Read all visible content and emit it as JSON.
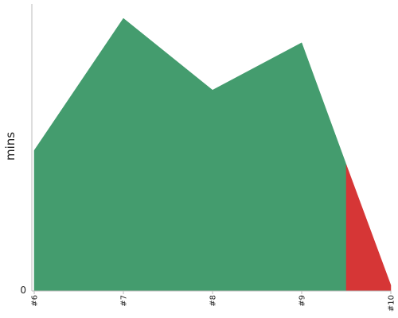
{
  "chart_data": {
    "type": "area",
    "ylabel": "mins",
    "categories": [
      "#6",
      "#7",
      "#8",
      "#9",
      "#10"
    ],
    "y_ticks": [
      0
    ],
    "ylim": [
      0,
      100
    ],
    "series": [
      {
        "color": "#449c6e",
        "points": [
          {
            "x": 0,
            "y": 49
          },
          {
            "x": 1,
            "y": 95
          },
          {
            "x": 2,
            "y": 70
          },
          {
            "x": 3,
            "y": 86.5
          },
          {
            "x": 3.5,
            "y": 44
          }
        ]
      },
      {
        "color": "#d63636",
        "points": [
          {
            "x": 3.5,
            "y": 44
          },
          {
            "x": 4,
            "y": 2
          }
        ]
      }
    ],
    "axis_color": "#bbbbbb",
    "grid": false,
    "legend": "none"
  }
}
